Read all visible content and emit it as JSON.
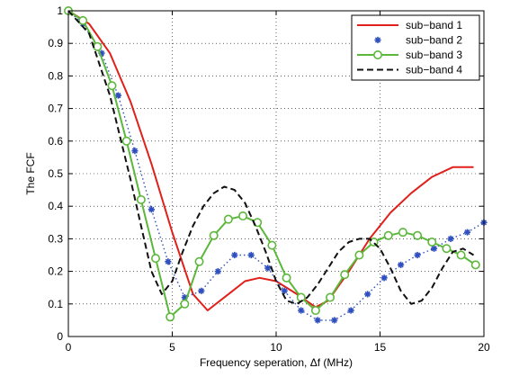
{
  "chart_data": {
    "type": "line",
    "title": "",
    "xlabel": "Frequency seperation, Δf (MHz)",
    "ylabel": "The FCF",
    "xlim": [
      0,
      20
    ],
    "ylim": [
      0,
      1
    ],
    "xticks": [
      0,
      5,
      10,
      15,
      20
    ],
    "yticks": [
      0,
      0.1,
      0.2,
      0.3,
      0.4,
      0.5,
      0.6,
      0.7,
      0.8,
      0.9,
      1
    ],
    "xtick_labels": [
      "0",
      "5",
      "10",
      "15",
      "20"
    ],
    "ytick_labels": [
      "0",
      "0.1",
      "0.2",
      "0.3",
      "0.4",
      "0.5",
      "0.6",
      "0.7",
      "0.8",
      "0.9",
      "1"
    ],
    "grid": true,
    "legend_position": "top-right",
    "series": [
      {
        "name": "sub−band 1",
        "color": "#e0201b",
        "style": "solid",
        "marker": "none",
        "x": [
          0,
          1,
          2,
          3,
          4,
          5,
          6,
          6.7,
          7.5,
          8.5,
          9.2,
          10,
          11,
          11.9,
          12.5,
          13.5,
          14.5,
          15.5,
          16.5,
          17.5,
          18.5,
          19.5
        ],
        "y": [
          1.0,
          0.96,
          0.87,
          0.72,
          0.53,
          0.32,
          0.13,
          0.08,
          0.12,
          0.17,
          0.18,
          0.17,
          0.13,
          0.09,
          0.11,
          0.2,
          0.3,
          0.38,
          0.44,
          0.49,
          0.52,
          0.52
        ]
      },
      {
        "name": "sub−band 2",
        "color": "#2f4fbf",
        "style": "dotted",
        "marker": "star",
        "x": [
          0,
          0.7,
          1.6,
          2.4,
          3.2,
          4.0,
          4.8,
          5.6,
          6.4,
          7.2,
          8.0,
          8.8,
          9.6,
          10.4,
          11.2,
          12.0,
          12.8,
          13.6,
          14.4,
          15.2,
          16.0,
          16.8,
          17.6,
          18.4,
          19.2,
          20.0
        ],
        "y": [
          1.0,
          0.96,
          0.87,
          0.74,
          0.57,
          0.39,
          0.23,
          0.12,
          0.14,
          0.2,
          0.25,
          0.25,
          0.21,
          0.14,
          0.08,
          0.05,
          0.05,
          0.08,
          0.13,
          0.18,
          0.22,
          0.25,
          0.27,
          0.3,
          0.32,
          0.35
        ]
      },
      {
        "name": "sub−band 3",
        "color": "#5bb83a",
        "style": "solid",
        "marker": "circle",
        "x": [
          0,
          0.7,
          1.4,
          2.1,
          2.8,
          3.5,
          4.2,
          4.9,
          5.6,
          6.3,
          7.0,
          7.7,
          8.4,
          9.1,
          9.8,
          10.5,
          11.2,
          11.9,
          12.6,
          13.3,
          14.0,
          14.7,
          15.4,
          16.1,
          16.8,
          17.5,
          18.2,
          18.9,
          19.6
        ],
        "y": [
          1.0,
          0.97,
          0.89,
          0.77,
          0.6,
          0.42,
          0.24,
          0.06,
          0.1,
          0.23,
          0.31,
          0.36,
          0.37,
          0.35,
          0.28,
          0.18,
          0.12,
          0.08,
          0.12,
          0.19,
          0.25,
          0.29,
          0.31,
          0.32,
          0.31,
          0.29,
          0.27,
          0.25,
          0.22
        ]
      },
      {
        "name": "sub−band 4",
        "color": "#111111",
        "style": "dashed",
        "marker": "none",
        "x": [
          0,
          1,
          2,
          3,
          3.5,
          4,
          4.5,
          5,
          5.5,
          6,
          6.5,
          7,
          7.5,
          8,
          8.5,
          9,
          9.5,
          10,
          10.5,
          11,
          11.5,
          12,
          12.5,
          13,
          13.5,
          14,
          14.5,
          15,
          15.5,
          16,
          16.5,
          17,
          17.5,
          18,
          18.5,
          19,
          19.5
        ],
        "y": [
          1.0,
          0.93,
          0.74,
          0.48,
          0.34,
          0.2,
          0.13,
          0.17,
          0.26,
          0.34,
          0.4,
          0.44,
          0.46,
          0.45,
          0.41,
          0.34,
          0.26,
          0.17,
          0.11,
          0.1,
          0.12,
          0.16,
          0.21,
          0.26,
          0.29,
          0.3,
          0.3,
          0.27,
          0.21,
          0.14,
          0.1,
          0.11,
          0.15,
          0.21,
          0.26,
          0.27,
          0.25
        ]
      }
    ]
  }
}
